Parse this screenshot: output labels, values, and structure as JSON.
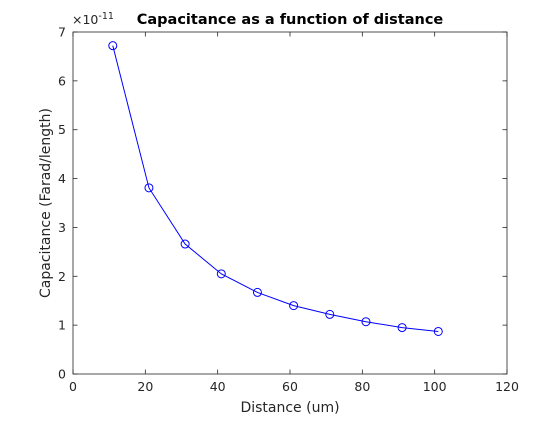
{
  "chart_data": {
    "type": "line",
    "title": "Capacitance as a function of distance",
    "xlabel": "Distance (um)",
    "ylabel": "Capacitance (Farad/length)",
    "xlim": [
      0,
      120
    ],
    "ylim": [
      0,
      7
    ],
    "xticks": [
      0,
      20,
      40,
      60,
      80,
      100,
      120
    ],
    "yticks": [
      0,
      1,
      2,
      3,
      4,
      5,
      6,
      7
    ],
    "y_exponent_label": "×10",
    "y_exponent_power": "-11",
    "y_multiplier": 1e-11,
    "grid": false,
    "marker": "circle",
    "series": [
      {
        "x": [
          11,
          21,
          31,
          41,
          51,
          61,
          71,
          81,
          91,
          101
        ],
        "y": [
          6.72,
          3.81,
          2.66,
          2.05,
          1.67,
          1.4,
          1.22,
          1.07,
          0.95,
          0.87
        ],
        "color": "#0000ff"
      }
    ]
  }
}
